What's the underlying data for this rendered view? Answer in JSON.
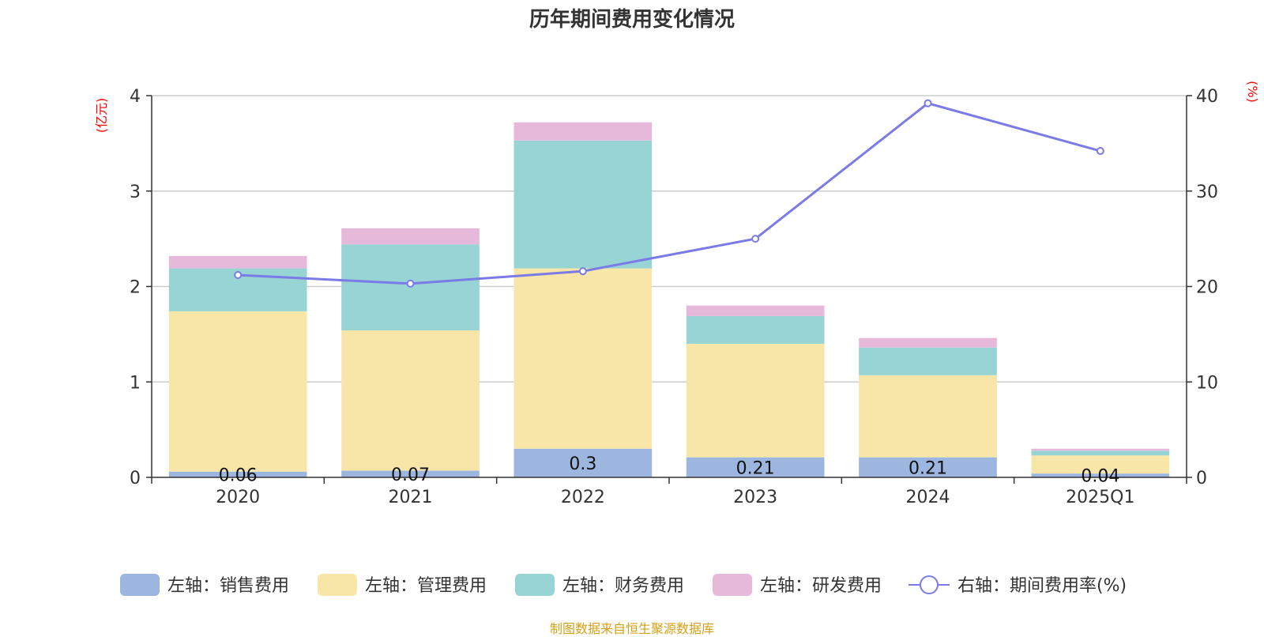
{
  "title": "历年期间费用变化情况",
  "source": "制图数据来自恒生聚源数据库",
  "chart_data": {
    "type": "bar",
    "stacked": true,
    "categories": [
      "2020",
      "2021",
      "2022",
      "2023",
      "2024",
      "2025Q1"
    ],
    "y_left": {
      "unit_label": "(亿元)",
      "ylim": [
        0,
        4
      ],
      "ticks": [
        "0",
        "1",
        "2",
        "3",
        "4"
      ]
    },
    "y_right": {
      "unit_label": "(%)",
      "ylim": [
        0,
        40
      ],
      "ticks": [
        "0",
        "10",
        "20",
        "30",
        "40"
      ]
    },
    "grid": true,
    "legend_position": "bottom",
    "series": [
      {
        "name": "左轴：销售费用",
        "axis": "left",
        "type": "bar",
        "color": "#9cb6e0",
        "values": [
          0.06,
          0.07,
          0.3,
          0.21,
          0.21,
          0.04
        ],
        "labels": [
          "0.06",
          "0.07",
          "0.3",
          "0.21",
          "0.21",
          "0.04"
        ]
      },
      {
        "name": "左轴：管理费用",
        "axis": "left",
        "type": "bar",
        "color": "#f7e6a8",
        "values": [
          1.68,
          1.47,
          1.89,
          1.19,
          0.86,
          0.19
        ]
      },
      {
        "name": "左轴：财务费用",
        "axis": "left",
        "type": "bar",
        "color": "#98d4d4",
        "values": [
          0.45,
          0.9,
          1.34,
          0.29,
          0.29,
          0.05
        ]
      },
      {
        "name": "左轴：研发费用",
        "axis": "left",
        "type": "bar",
        "color": "#e6b9da",
        "values": [
          0.13,
          0.17,
          0.19,
          0.11,
          0.1,
          0.02
        ]
      },
      {
        "name": "右轴：期间费用率(%)",
        "axis": "right",
        "type": "line",
        "color": "#7b7be8",
        "values": [
          21.2,
          20.3,
          21.6,
          25.0,
          39.2,
          34.2
        ]
      }
    ]
  }
}
